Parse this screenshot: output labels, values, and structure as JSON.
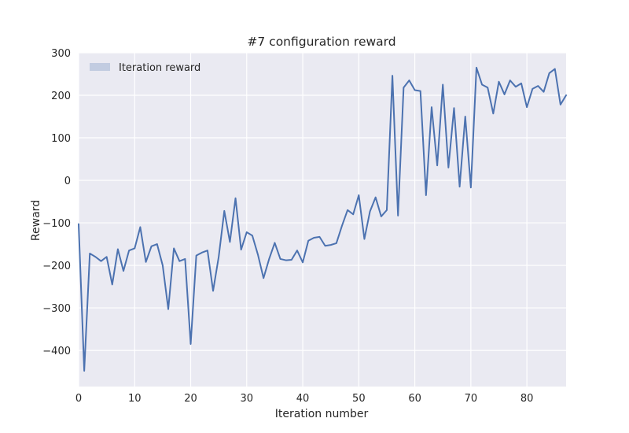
{
  "chart_data": {
    "type": "line",
    "title": "#7 configuration reward",
    "xlabel": "Iteration number",
    "ylabel": "Reward",
    "xlim": [
      0,
      87
    ],
    "ylim": [
      -485,
      300
    ],
    "xticks": [
      0,
      10,
      20,
      30,
      40,
      50,
      60,
      70,
      80
    ],
    "yticks": [
      -400,
      -300,
      -200,
      -100,
      0,
      100,
      200,
      300
    ],
    "grid": true,
    "legend_position": "top-left",
    "series": [
      {
        "name": "Iteration reward",
        "color": "#4c72b0",
        "x": [
          0,
          1,
          2,
          3,
          4,
          5,
          6,
          7,
          8,
          9,
          10,
          11,
          12,
          13,
          14,
          15,
          16,
          17,
          18,
          19,
          20,
          21,
          22,
          23,
          24,
          25,
          26,
          27,
          28,
          29,
          30,
          31,
          32,
          33,
          34,
          35,
          36,
          37,
          38,
          39,
          40,
          41,
          42,
          43,
          44,
          45,
          46,
          47,
          48,
          49,
          50,
          51,
          52,
          53,
          54,
          55,
          56,
          57,
          58,
          59,
          60,
          61,
          62,
          63,
          64,
          65,
          66,
          67,
          68,
          69,
          70,
          71,
          72,
          73,
          74,
          75,
          76,
          77,
          78,
          79,
          80,
          81,
          82,
          83,
          84,
          85,
          86,
          87
        ],
        "values": [
          -103,
          -448,
          -172,
          -180,
          -190,
          -180,
          -245,
          -162,
          -213,
          -165,
          -160,
          -110,
          -192,
          -155,
          -150,
          -200,
          -303,
          -160,
          -190,
          -185,
          -385,
          -177,
          -170,
          -165,
          -260,
          -180,
          -72,
          -145,
          -42,
          -163,
          -122,
          -130,
          -175,
          -230,
          -185,
          -147,
          -185,
          -188,
          -187,
          -165,
          -193,
          -142,
          -135,
          -133,
          -154,
          -152,
          -148,
          -107,
          -70,
          -80,
          -35,
          -138,
          -73,
          -40,
          -85,
          -70,
          246,
          -83,
          218,
          235,
          212,
          210,
          -35,
          172,
          35,
          225,
          30,
          170,
          -15,
          150,
          -17,
          265,
          225,
          218,
          157,
          232,
          202,
          235,
          220,
          228,
          172,
          215,
          222,
          208,
          252,
          262,
          178,
          200
        ]
      }
    ]
  }
}
